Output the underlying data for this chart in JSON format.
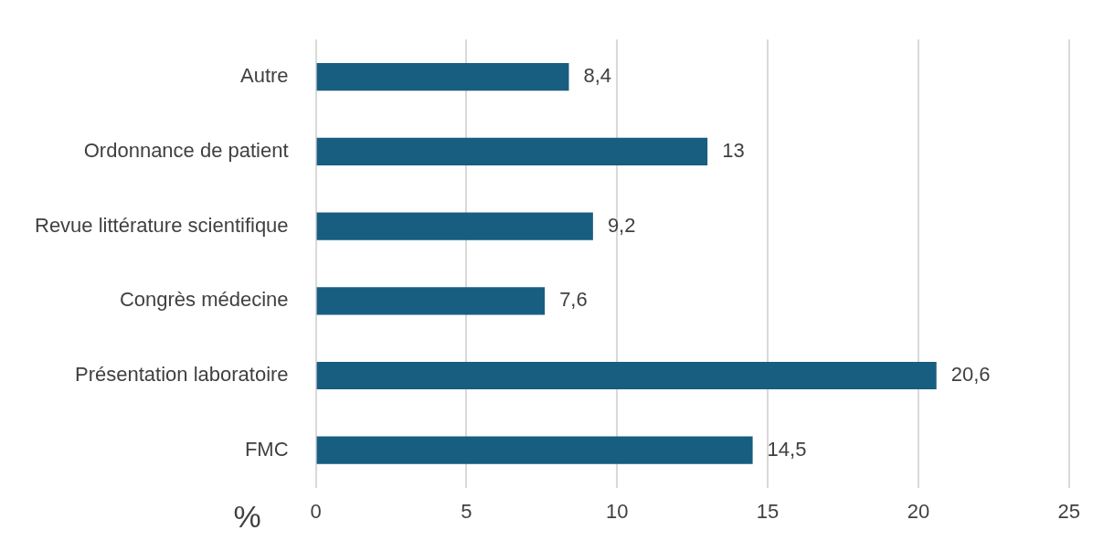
{
  "chart_data": {
    "type": "bar",
    "orientation": "horizontal",
    "xlabel": "%",
    "categories": [
      "Autre",
      "Ordonnance de patient",
      "Revue littérature scientifique",
      "Congrès médecine",
      "Présentation laboratoire",
      "FMC"
    ],
    "values": [
      8.4,
      13,
      9.2,
      7.6,
      20.6,
      14.5
    ],
    "value_labels": [
      "8,4",
      "13",
      "9,2",
      "7,6",
      "20,6",
      "14,5"
    ],
    "color": "#175e80",
    "xlim": [
      0,
      25
    ],
    "xticks": [
      0,
      5,
      10,
      15,
      20,
      25
    ],
    "grid": "x",
    "legend": false
  }
}
